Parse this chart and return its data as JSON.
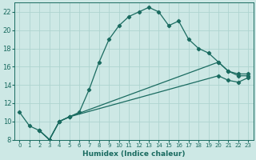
{
  "xlabel": "Humidex (Indice chaleur)",
  "bg_color": "#cde8e5",
  "grid_color": "#aed4d0",
  "line_color": "#1a6b60",
  "xlim": [
    -0.5,
    23.5
  ],
  "ylim": [
    8,
    23
  ],
  "xticks": [
    0,
    1,
    2,
    3,
    4,
    5,
    6,
    7,
    8,
    9,
    10,
    11,
    12,
    13,
    14,
    15,
    16,
    17,
    18,
    19,
    20,
    21,
    22,
    23
  ],
  "yticks": [
    8,
    10,
    12,
    14,
    16,
    18,
    20,
    22
  ],
  "series1_x": [
    0,
    1,
    2,
    3,
    4,
    5,
    6,
    7,
    8,
    9,
    10,
    11,
    12,
    13,
    14,
    15,
    16,
    17,
    18,
    19,
    20,
    21,
    22,
    23
  ],
  "series1_y": [
    11,
    9.5,
    9,
    8,
    10,
    10.5,
    11,
    13.5,
    16.5,
    19,
    20.5,
    21.5,
    22,
    22.5,
    22,
    20.5,
    21,
    19,
    18,
    17.5,
    16.5,
    15.5,
    15,
    15
  ],
  "series2_x": [
    2,
    3,
    4,
    5,
    20,
    21,
    22,
    23
  ],
  "series2_y": [
    9,
    8,
    10,
    10.5,
    16.5,
    15.5,
    15.2,
    15.2
  ],
  "series3_x": [
    2,
    3,
    4,
    5,
    20,
    21,
    22,
    23
  ],
  "series3_y": [
    9,
    8,
    10,
    10.5,
    15.0,
    14.5,
    14.3,
    14.8
  ],
  "xlabel_fontsize": 6.5,
  "tick_fontsize": 5.0,
  "ytick_fontsize": 6.0,
  "linewidth": 0.9,
  "markersize": 2.2
}
